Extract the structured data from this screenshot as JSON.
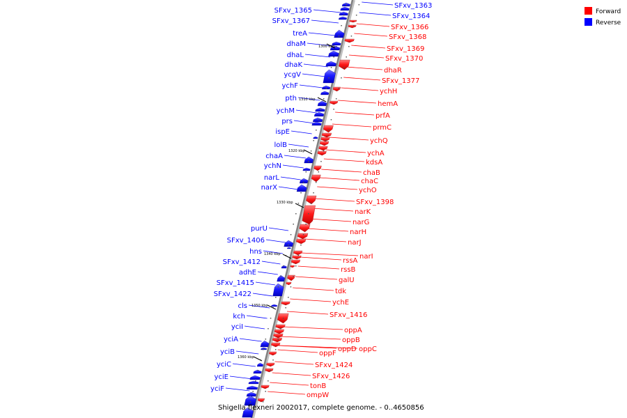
{
  "caption": "Shigella flexneri 2002017, complete genome. - 0..4650856",
  "legend": [
    {
      "label": "Forward",
      "color": "#ff0000"
    },
    {
      "label": "Reverse",
      "color": "#0000ff"
    }
  ],
  "colors": {
    "forward": "#ff0000",
    "reverse": "#0000ff",
    "backbone": "#808080"
  },
  "ticks": [
    "1300 kbp",
    "1310 kbp",
    "1320 kbp",
    "1330 kbp",
    "1340 kbp",
    "1350 kbp",
    "1360 kbp"
  ],
  "reverse_labels": [
    "SFxv_1365",
    "SFxv_1367",
    "treA",
    "dhaM",
    "dhaL",
    "dhaK",
    "ycgV",
    "ychF",
    "pth",
    "ychM",
    "prs",
    "ispE",
    "lolB",
    "chaA",
    "ychN",
    "narL",
    "narX",
    "purU",
    "SFxv_1406",
    "hns",
    "SFxv_1412",
    "adhE",
    "SFxv_1415",
    "SFxv_1422",
    "cls",
    "kch",
    "yciI",
    "yciA",
    "yciB",
    "yciC",
    "yciE",
    "yciF"
  ],
  "forward_labels": [
    "SFxv_1363",
    "SFxv_1364",
    "SFxv_1366",
    "SFxv_1368",
    "SFxv_1369",
    "SFxv_1370",
    "dhaR",
    "SFxv_1377",
    "ychH",
    "hemA",
    "prfA",
    "prmC",
    "ychQ",
    "ychA",
    "kdsA",
    "chaB",
    "chaC",
    "ychO",
    "SFxv_1398",
    "narK",
    "narG",
    "narH",
    "narJ",
    "narI",
    "rssA",
    "rssB",
    "galU",
    "tdk",
    "ychE",
    "SFxv_1416",
    "oppA",
    "oppB",
    "oppD",
    "oppC",
    "oppF",
    "SFxv_1424",
    "SFxv_1426",
    "tonB",
    "ompW"
  ]
}
